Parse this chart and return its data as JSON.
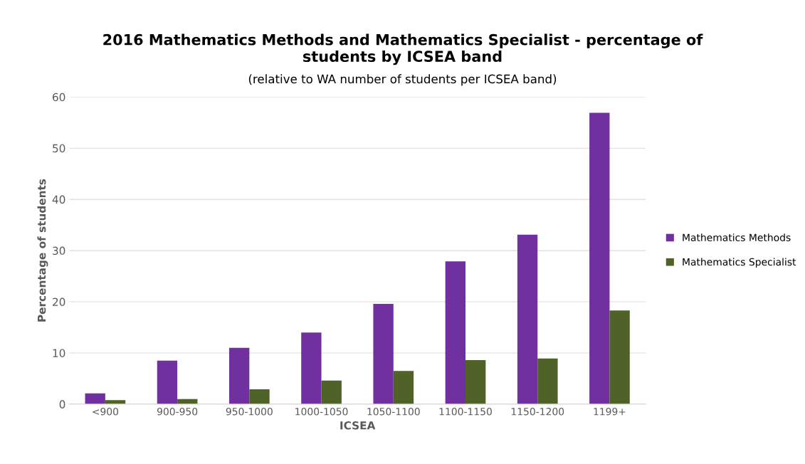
{
  "chart_data": {
    "type": "bar",
    "title": "2016 Mathematics Methods and Mathematics Specialist - percentage of\nstudents by ICSEA band",
    "subtitle": "(relative to WA number of students per ICSEA band)",
    "xlabel": "ICSEA",
    "ylabel": "Percentage of students",
    "categories": [
      "<900",
      "900-950",
      "950-1000",
      "1000-1050",
      "1050-1100",
      "1100-1150",
      "1150-1200",
      "1199+"
    ],
    "series": [
      {
        "name": "Mathematics Methods",
        "color": "#7030a0",
        "values": [
          2.1,
          8.5,
          11.0,
          14.0,
          19.6,
          27.9,
          33.1,
          56.9
        ]
      },
      {
        "name": "Mathematics Specialist",
        "color": "#4f6228",
        "values": [
          0.8,
          1.0,
          2.9,
          4.6,
          6.5,
          8.6,
          8.9,
          18.3
        ]
      }
    ],
    "ylim": [
      0,
      60
    ],
    "yticks": [
      0,
      10,
      20,
      30,
      40,
      50,
      60
    ],
    "grid": "y",
    "legend": "right"
  }
}
